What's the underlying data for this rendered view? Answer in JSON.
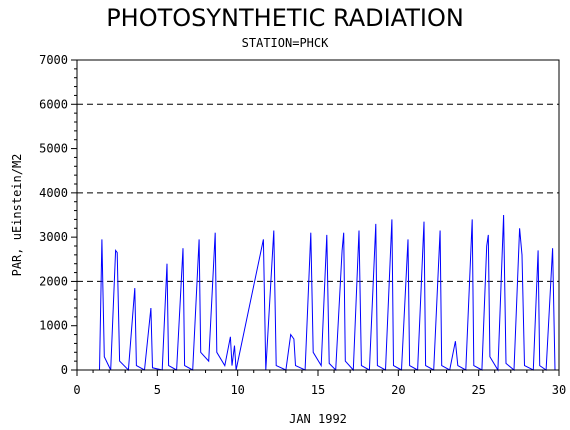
{
  "chart_data": {
    "type": "line",
    "title": "PHOTOSYNTHETIC RADIATION",
    "subtitle": "STATION=PHCK",
    "xlabel": "JAN 1992",
    "ylabel": "PAR, uEinstein/M2",
    "xlim": [
      0,
      30
    ],
    "ylim": [
      0,
      7000
    ],
    "x_ticks": [
      0,
      5,
      10,
      15,
      20,
      25,
      30
    ],
    "y_ticks": [
      0,
      1000,
      2000,
      3000,
      4000,
      5000,
      6000,
      7000
    ],
    "reference_lines": [
      2000,
      4000,
      6000
    ],
    "line_color": "#0000ff",
    "grid": false,
    "series": [
      {
        "values": [
          [
            1.4,
            0
          ],
          [
            1.55,
            2950
          ],
          [
            1.7,
            300
          ],
          [
            2.1,
            0
          ],
          [
            2.4,
            2700
          ],
          [
            2.5,
            2650
          ],
          [
            2.65,
            200
          ],
          [
            3.2,
            0
          ],
          [
            3.6,
            1850
          ],
          [
            3.7,
            100
          ],
          [
            4.2,
            0
          ],
          [
            4.6,
            1400
          ],
          [
            4.7,
            50
          ],
          [
            5.3,
            0
          ],
          [
            5.6,
            2400
          ],
          [
            5.7,
            100
          ],
          [
            6.2,
            0
          ],
          [
            6.6,
            2750
          ],
          [
            6.7,
            100
          ],
          [
            7.2,
            0
          ],
          [
            7.6,
            2950
          ],
          [
            7.7,
            400
          ],
          [
            8.2,
            200
          ],
          [
            8.6,
            3100
          ],
          [
            8.7,
            400
          ],
          [
            9.2,
            100
          ],
          [
            9.55,
            750
          ],
          [
            9.65,
            100
          ],
          [
            9.8,
            550
          ],
          [
            9.9,
            0
          ],
          [
            11.6,
            2950
          ],
          [
            11.75,
            0
          ],
          [
            12.25,
            3150
          ],
          [
            12.4,
            100
          ],
          [
            13.0,
            0
          ],
          [
            13.3,
            800
          ],
          [
            13.5,
            700
          ],
          [
            13.6,
            100
          ],
          [
            14.2,
            0
          ],
          [
            14.55,
            3100
          ],
          [
            14.7,
            400
          ],
          [
            15.2,
            100
          ],
          [
            15.55,
            3050
          ],
          [
            15.7,
            150
          ],
          [
            16.1,
            0
          ],
          [
            16.5,
            2700
          ],
          [
            16.6,
            3100
          ],
          [
            16.7,
            200
          ],
          [
            17.2,
            0
          ],
          [
            17.55,
            3150
          ],
          [
            17.7,
            100
          ],
          [
            18.2,
            0
          ],
          [
            18.6,
            3300
          ],
          [
            18.7,
            100
          ],
          [
            19.2,
            0
          ],
          [
            19.6,
            3400
          ],
          [
            19.7,
            100
          ],
          [
            20.2,
            0
          ],
          [
            20.6,
            2950
          ],
          [
            20.7,
            100
          ],
          [
            21.2,
            0
          ],
          [
            21.6,
            3350
          ],
          [
            21.7,
            100
          ],
          [
            22.2,
            0
          ],
          [
            22.6,
            3150
          ],
          [
            22.7,
            100
          ],
          [
            23.2,
            0
          ],
          [
            23.55,
            650
          ],
          [
            23.7,
            100
          ],
          [
            24.2,
            0
          ],
          [
            24.6,
            3400
          ],
          [
            24.7,
            100
          ],
          [
            25.2,
            0
          ],
          [
            25.5,
            2800
          ],
          [
            25.6,
            3050
          ],
          [
            25.7,
            300
          ],
          [
            26.2,
            0
          ],
          [
            26.55,
            3500
          ],
          [
            26.7,
            150
          ],
          [
            27.2,
            0
          ],
          [
            27.55,
            3200
          ],
          [
            27.7,
            2600
          ],
          [
            27.85,
            100
          ],
          [
            28.4,
            0
          ],
          [
            28.7,
            2700
          ],
          [
            28.8,
            100
          ],
          [
            29.2,
            0
          ],
          [
            29.6,
            2750
          ],
          [
            29.75,
            0
          ]
        ]
      }
    ]
  }
}
